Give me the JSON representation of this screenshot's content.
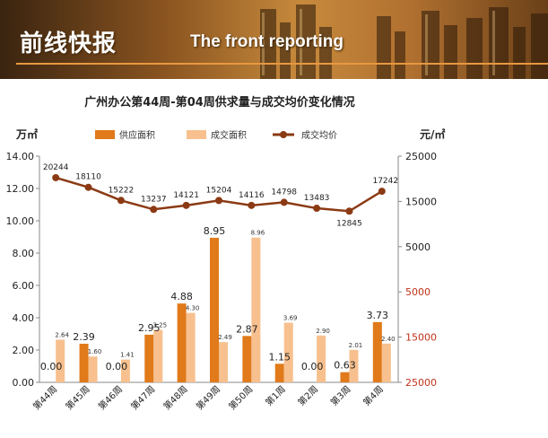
{
  "banner": {
    "title": "前线快报",
    "subtitle": "The front reporting"
  },
  "colors": {
    "supply": "#e07a1a",
    "transaction": "#f7c08e",
    "price": "#8b3a14",
    "right_axis": "#c0311a"
  },
  "chart_data": {
    "type": "bar",
    "title": "广州办公第44周-第04周供求量与成交均价变化情况",
    "categories": [
      "第44周",
      "第45周",
      "第46周",
      "第47周",
      "第48周",
      "第49周",
      "第50周",
      "第1周",
      "第2周",
      "第3周",
      "第4周"
    ],
    "ylabel_left": "万㎡",
    "ylabel_right": "元/㎡",
    "left_ylim": [
      0,
      14
    ],
    "left_ticks": [
      "0.00",
      "2.00",
      "4.00",
      "6.00",
      "8.00",
      "10.00",
      "12.00",
      "14.00"
    ],
    "right_ylim": [
      25000,
      -25000
    ],
    "right_ticks": [
      "25000",
      "15000",
      "5000",
      "5000",
      "15000",
      "25000"
    ],
    "legend": [
      "供应面积",
      "成交面积",
      "成交均价"
    ],
    "series": [
      {
        "name": "供应面积",
        "type": "bar",
        "axis": "left",
        "values": [
          0.0,
          2.39,
          0.0,
          2.95,
          4.88,
          8.95,
          2.87,
          1.15,
          0.0,
          0.63,
          3.73
        ],
        "labels": [
          "0.00",
          "2.39",
          "0.00",
          "2.95",
          "4.88",
          "8.95",
          "2.87",
          "1.15",
          "0.00",
          "0.63",
          "3.73"
        ]
      },
      {
        "name": "成交面积",
        "type": "bar",
        "axis": "left",
        "values": [
          2.64,
          1.6,
          1.41,
          3.25,
          4.3,
          2.49,
          8.96,
          3.69,
          2.9,
          2.01,
          2.4
        ],
        "labels": [
          "2.64",
          "1.60",
          "1.41",
          "3.25",
          "4.30",
          "2.49",
          "8.96",
          "3.69",
          "2.90",
          "2.01",
          "2.40"
        ]
      },
      {
        "name": "成交均价",
        "type": "line",
        "axis": "right",
        "values": [
          20244,
          18110,
          15222,
          13237,
          14121,
          15204,
          14116,
          14798,
          13483,
          12845,
          17242
        ],
        "labels": [
          "20244",
          "18110",
          "15222",
          "13237",
          "14121",
          "15204",
          "14116",
          "14798",
          "13483",
          "12845",
          "17242"
        ]
      }
    ]
  }
}
